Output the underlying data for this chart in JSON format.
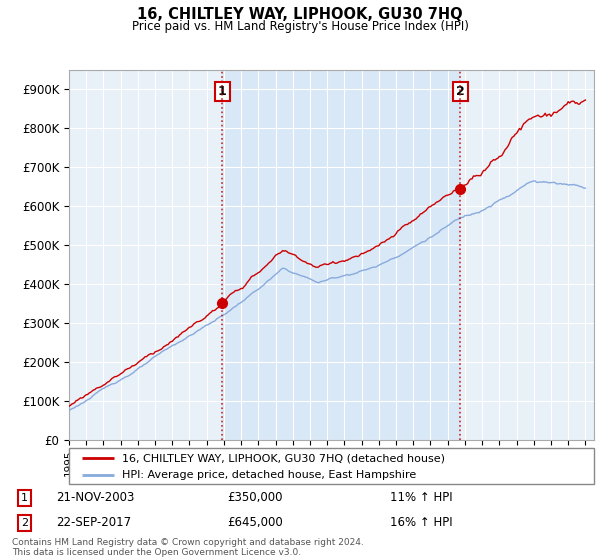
{
  "title": "16, CHILTLEY WAY, LIPHOOK, GU30 7HQ",
  "subtitle": "Price paid vs. HM Land Registry's House Price Index (HPI)",
  "ylabel_ticks": [
    "£0",
    "£100K",
    "£200K",
    "£300K",
    "£400K",
    "£500K",
    "£600K",
    "£700K",
    "£800K",
    "£900K"
  ],
  "ylim": [
    0,
    950000
  ],
  "xlim_start": 1995.0,
  "xlim_end": 2025.5,
  "marker1_date": 2003.9,
  "marker1_value": 350000,
  "marker1_label": "1",
  "marker2_date": 2017.72,
  "marker2_value": 645000,
  "marker2_label": "2",
  "house_color": "#cc0000",
  "hpi_color": "#88aadd",
  "background_color": "#e8f0f8",
  "highlight_color": "#d0e4f5",
  "legend_house": "16, CHILTLEY WAY, LIPHOOK, GU30 7HQ (detached house)",
  "legend_hpi": "HPI: Average price, detached house, East Hampshire",
  "annotation1_date": "21-NOV-2003",
  "annotation1_price": "£350,000",
  "annotation1_hpi": "11% ↑ HPI",
  "annotation2_date": "22-SEP-2017",
  "annotation2_price": "£645,000",
  "annotation2_hpi": "16% ↑ HPI",
  "footer": "Contains HM Land Registry data © Crown copyright and database right 2024.\nThis data is licensed under the Open Government Licence v3.0."
}
